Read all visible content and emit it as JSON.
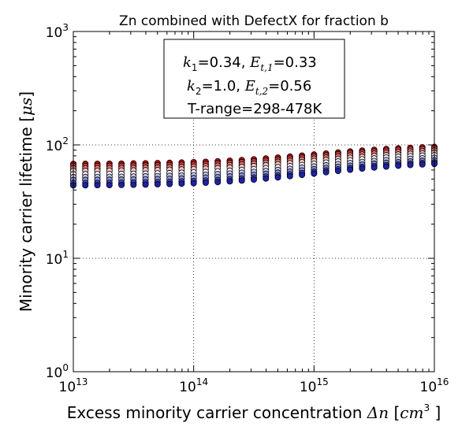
{
  "chart_data": {
    "type": "scatter",
    "title": "Zn combined with DefectX for fraction b",
    "xlabel": {
      "text": "Excess minority carrier concentration ",
      "math_var": "Δn",
      "unit_open": " [",
      "unit_math": "cm",
      "unit_exp": "3",
      "unit_close": " ]"
    },
    "ylabel": {
      "text": "Minority carrier lifetime [",
      "unit_math": "μs",
      "unit_close": "]"
    },
    "x_scale": "log",
    "y_scale": "log",
    "xlim": [
      10000000000000.0,
      1e+16
    ],
    "ylim": [
      1,
      1000
    ],
    "grid": "dotted at major ticks",
    "x_ticks": [
      {
        "value": 10000000000000.0,
        "base": "10",
        "exp": "13"
      },
      {
        "value": 100000000000000.0,
        "base": "10",
        "exp": "14"
      },
      {
        "value": 1000000000000000.0,
        "base": "10",
        "exp": "15"
      },
      {
        "value": 1e+16,
        "base": "10",
        "exp": "16"
      }
    ],
    "y_ticks": [
      {
        "value": 1,
        "base": "10",
        "exp": "0"
      },
      {
        "value": 10,
        "base": "10",
        "exp": "1"
      },
      {
        "value": 100,
        "base": "10",
        "exp": "2"
      },
      {
        "value": 1000,
        "base": "10",
        "exp": "3"
      }
    ],
    "annotation": {
      "location": "top-center",
      "line1": {
        "k_sym": "k",
        "k_sub": "1",
        "k_val": "=0.34, ",
        "e_sym": "E",
        "e_sub": "t,1",
        "e_val": "=0.33"
      },
      "line2": {
        "k_sym": "k",
        "k_sub": "2",
        "k_val": "=1.0, ",
        "e_sym": "E",
        "e_sub": "t,2",
        "e_val": "=0.56"
      },
      "line3": "T-range=298-478K"
    },
    "x_points_per_decade": 10,
    "series": [
      {
        "color": "#cc0000",
        "low": 68,
        "high": 96
      },
      {
        "color": "#dd3b3b",
        "low": 65,
        "high": 93
      },
      {
        "color": "#ec8080",
        "low": 62,
        "high": 89
      },
      {
        "color": "#f6c0c0",
        "low": 59,
        "high": 85
      },
      {
        "color": "#ffffff",
        "low": 55,
        "high": 81
      },
      {
        "color": "#c5c8f2",
        "low": 52,
        "high": 77
      },
      {
        "color": "#8a90e2",
        "low": 49,
        "high": 73
      },
      {
        "color": "#4a52cc",
        "low": 46,
        "high": 70
      },
      {
        "color": "#1a22b0",
        "low": 44,
        "high": 68
      }
    ]
  }
}
